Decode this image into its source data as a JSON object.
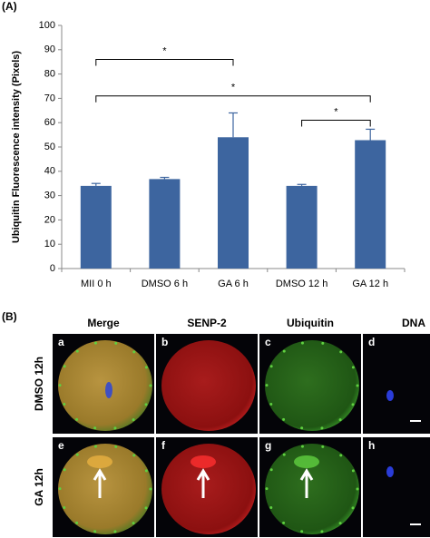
{
  "chart_data": {
    "type": "bar",
    "panel_label": "(A)",
    "y_label": "Ubiquitin Fluorescence intensity (Pixels)",
    "categories": [
      "MII 0 h",
      "DMSO 6 h",
      "GA 6 h",
      "DMSO 12 h",
      "GA 12 h"
    ],
    "values": [
      34,
      36.8,
      54,
      34,
      52.8
    ],
    "errors": [
      1,
      0.7,
      10,
      0.6,
      4.5
    ],
    "color": "#3d659f",
    "ylim": [
      0,
      100
    ],
    "yticks": [
      0,
      10,
      20,
      30,
      40,
      50,
      60,
      70,
      80,
      90,
      100
    ],
    "grid": false,
    "annotations": [
      {
        "text": "*",
        "from": 0,
        "to": 2,
        "y": 86
      },
      {
        "text": "*",
        "from": 0,
        "to": 4,
        "y": 71
      },
      {
        "text": "*",
        "from": 3,
        "to": 4,
        "y": 61
      }
    ]
  },
  "panel_b": {
    "label": "(B)",
    "columns": [
      "Merge",
      "SENP-2",
      "Ubiquitin",
      "DNA"
    ],
    "rows": [
      "DMSO 12h",
      "GA 12h"
    ],
    "cells": [
      "a",
      "b",
      "c",
      "d",
      "e",
      "f",
      "g",
      "h"
    ]
  }
}
